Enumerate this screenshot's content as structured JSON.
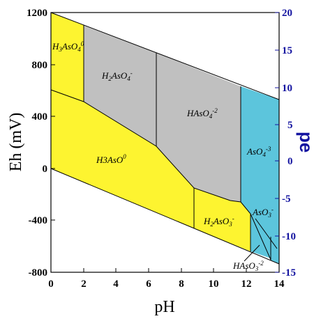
{
  "diagram": {
    "x_axis": {
      "title": "pH",
      "ticks": [
        "0",
        "2",
        "4",
        "6",
        "8",
        "10",
        "12",
        "14"
      ]
    },
    "y_axis_left": {
      "title": "Eh (mV)",
      "ticks": [
        "1200",
        "800",
        "400",
        "0",
        "-400",
        "-800"
      ]
    },
    "y_axis_right": {
      "title": "pe",
      "ticks": [
        "20",
        "15",
        "10",
        "5",
        "0",
        "-5",
        "-10",
        "-15"
      ]
    },
    "species": [
      {
        "main": "H",
        "sub1": "3",
        "mid": "AsO",
        "sub2": "4",
        "sup": "0"
      },
      {
        "main": "H",
        "sub1": "2",
        "mid": "AsO",
        "sub2": "4",
        "sup": "-"
      },
      {
        "main": "HAsO",
        "sub1": "4",
        "mid": "",
        "sub2": "",
        "sup": "-2"
      },
      {
        "main": "AsO",
        "sub1": "4",
        "mid": "",
        "sub2": "",
        "sup": "-3"
      },
      {
        "main": "H3AsO",
        "sub1": "3",
        "mid": "",
        "sub2": "",
        "sup": "0"
      },
      {
        "main": "H",
        "sub1": "2",
        "mid": "AsO",
        "sub2": "3",
        "sup": "-"
      },
      {
        "main": "AsO",
        "sub1": "3",
        "mid": "",
        "sub2": "",
        "sup": "-"
      },
      {
        "main": "HAsO",
        "sub1": "3",
        "mid": "",
        "sub2": "",
        "sup": "-2"
      }
    ],
    "colors": {
      "yellow": "#fdf430",
      "gray": "#c0c0c0",
      "cyan": "#5cc5dc",
      "right_axis": "#1414a0"
    }
  }
}
